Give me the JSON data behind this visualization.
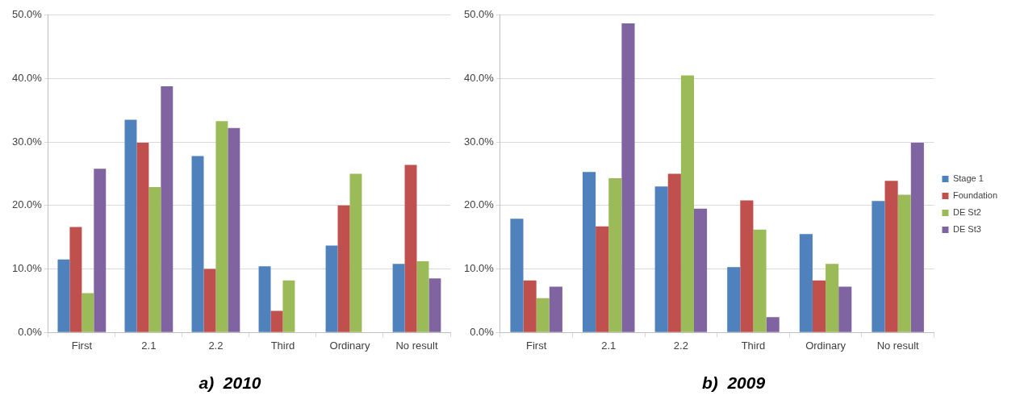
{
  "chart_data": [
    {
      "type": "bar",
      "title": "a)  2010",
      "categories": [
        "First",
        "2.1",
        "2.2",
        "Third",
        "Ordinary",
        "No result"
      ],
      "series": [
        {
          "color": "#4f81bd",
          "values": [
            11.5,
            33.5,
            27.8,
            10.4,
            13.7,
            10.8
          ]
        },
        {
          "color": "#c0504d",
          "values": [
            16.6,
            29.9,
            10.0,
            3.4,
            20.0,
            26.4
          ]
        },
        {
          "color": "#9bbb59",
          "values": [
            6.2,
            22.9,
            33.3,
            8.2,
            25.0,
            11.2
          ]
        },
        {
          "color": "#8064a2",
          "values": [
            25.8,
            38.8,
            32.2,
            null,
            null,
            8.5
          ]
        }
      ],
      "ylim": [
        0,
        50
      ],
      "yticks": [
        {
          "value": 0,
          "label": "0.0%"
        },
        {
          "value": 10,
          "label": "10.0%"
        },
        {
          "value": 20,
          "label": "20.0%"
        },
        {
          "value": 30,
          "label": "30.0%"
        },
        {
          "value": 40,
          "label": "40.0%"
        },
        {
          "value": 50,
          "label": "50.0%"
        }
      ],
      "grid": "y",
      "legend": false
    },
    {
      "type": "bar",
      "title": "b)  2009",
      "categories": [
        "First",
        "2.1",
        "2.2",
        "Third",
        "Ordinary",
        "No result"
      ],
      "series": [
        {
          "name": "Stage 1",
          "color": "#4f81bd",
          "values": [
            17.9,
            25.3,
            23.0,
            10.3,
            15.5,
            20.7
          ]
        },
        {
          "name": "Foundation",
          "color": "#c0504d",
          "values": [
            8.2,
            16.7,
            25.0,
            20.8,
            8.2,
            23.9
          ]
        },
        {
          "name": "DE St2",
          "color": "#9bbb59",
          "values": [
            5.4,
            24.3,
            40.5,
            16.2,
            10.8,
            21.7
          ]
        },
        {
          "name": "DE St3",
          "color": "#8064a2",
          "values": [
            7.2,
            48.7,
            19.5,
            2.4,
            7.2,
            29.9
          ]
        }
      ],
      "ylim": [
        0,
        50
      ],
      "yticks": [
        {
          "value": 0,
          "label": "0.0%"
        },
        {
          "value": 10,
          "label": "10.0%"
        },
        {
          "value": 20,
          "label": "20.0%"
        },
        {
          "value": 30,
          "label": "30.0%"
        },
        {
          "value": 40,
          "label": "40.0%"
        },
        {
          "value": 50,
          "label": "50.0%"
        }
      ],
      "grid": "y",
      "legend": "right"
    }
  ]
}
